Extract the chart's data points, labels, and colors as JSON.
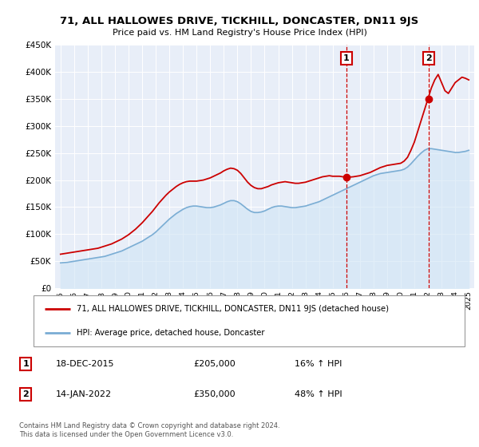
{
  "title": "71, ALL HALLOWES DRIVE, TICKHILL, DONCASTER, DN11 9JS",
  "subtitle": "Price paid vs. HM Land Registry's House Price Index (HPI)",
  "legend_line1": "71, ALL HALLOWES DRIVE, TICKHILL, DONCASTER, DN11 9JS (detached house)",
  "legend_line2": "HPI: Average price, detached house, Doncaster",
  "sale1_date": "18-DEC-2015",
  "sale1_price": "£205,000",
  "sale1_hpi": "16% ↑ HPI",
  "sale2_date": "14-JAN-2022",
  "sale2_price": "£350,000",
  "sale2_hpi": "48% ↑ HPI",
  "footer": "Contains HM Land Registry data © Crown copyright and database right 2024.\nThis data is licensed under the Open Government Licence v3.0.",
  "red_color": "#cc0000",
  "blue_color": "#7aadd4",
  "blue_fill": "#d0e4f5",
  "background_plot": "#e8eef8",
  "ylim": [
    0,
    450000
  ],
  "yticks": [
    0,
    50000,
    100000,
    150000,
    200000,
    250000,
    300000,
    350000,
    400000,
    450000
  ],
  "ytick_labels": [
    "£0",
    "£50K",
    "£100K",
    "£150K",
    "£200K",
    "£250K",
    "£300K",
    "£350K",
    "£400K",
    "£450K"
  ],
  "xtick_years": [
    1995,
    1996,
    1997,
    1998,
    1999,
    2000,
    2001,
    2002,
    2003,
    2004,
    2005,
    2006,
    2007,
    2008,
    2009,
    2010,
    2011,
    2012,
    2013,
    2014,
    2015,
    2016,
    2017,
    2018,
    2019,
    2020,
    2021,
    2022,
    2023,
    2024,
    2025
  ],
  "sale1_year": 2016.0,
  "sale2_year": 2022.04,
  "sale1_price_val": 205000,
  "sale2_price_val": 350000,
  "hpi_x": [
    1995.0,
    1995.25,
    1995.5,
    1995.75,
    1996.0,
    1996.25,
    1996.5,
    1996.75,
    1997.0,
    1997.25,
    1997.5,
    1997.75,
    1998.0,
    1998.25,
    1998.5,
    1998.75,
    1999.0,
    1999.25,
    1999.5,
    1999.75,
    2000.0,
    2000.25,
    2000.5,
    2000.75,
    2001.0,
    2001.25,
    2001.5,
    2001.75,
    2002.0,
    2002.25,
    2002.5,
    2002.75,
    2003.0,
    2003.25,
    2003.5,
    2003.75,
    2004.0,
    2004.25,
    2004.5,
    2004.75,
    2005.0,
    2005.25,
    2005.5,
    2005.75,
    2006.0,
    2006.25,
    2006.5,
    2006.75,
    2007.0,
    2007.25,
    2007.5,
    2007.75,
    2008.0,
    2008.25,
    2008.5,
    2008.75,
    2009.0,
    2009.25,
    2009.5,
    2009.75,
    2010.0,
    2010.25,
    2010.5,
    2010.75,
    2011.0,
    2011.25,
    2011.5,
    2011.75,
    2012.0,
    2012.25,
    2012.5,
    2012.75,
    2013.0,
    2013.25,
    2013.5,
    2013.75,
    2014.0,
    2014.25,
    2014.5,
    2014.75,
    2015.0,
    2015.25,
    2015.5,
    2015.75,
    2016.0,
    2016.25,
    2016.5,
    2016.75,
    2017.0,
    2017.25,
    2017.5,
    2017.75,
    2018.0,
    2018.25,
    2018.5,
    2018.75,
    2019.0,
    2019.25,
    2019.5,
    2019.75,
    2020.0,
    2020.25,
    2020.5,
    2020.75,
    2021.0,
    2021.25,
    2021.5,
    2021.75,
    2022.0,
    2022.25,
    2022.5,
    2022.75,
    2023.0,
    2023.25,
    2023.5,
    2023.75,
    2024.0,
    2024.25,
    2024.5,
    2024.75,
    2025.0
  ],
  "hpi_y": [
    47000,
    47500,
    48000,
    49000,
    50000,
    51000,
    52000,
    53000,
    54000,
    55000,
    56000,
    57000,
    58000,
    59000,
    61000,
    63000,
    65000,
    67000,
    69000,
    72000,
    75000,
    78000,
    81000,
    84000,
    87000,
    91000,
    95000,
    99000,
    104000,
    110000,
    116000,
    122000,
    128000,
    133000,
    138000,
    142000,
    146000,
    149000,
    151000,
    152000,
    152000,
    151000,
    150000,
    149000,
    149000,
    150000,
    152000,
    154000,
    157000,
    160000,
    162000,
    162000,
    160000,
    156000,
    151000,
    146000,
    142000,
    140000,
    140000,
    141000,
    143000,
    146000,
    149000,
    151000,
    152000,
    152000,
    151000,
    150000,
    149000,
    149000,
    150000,
    151000,
    152000,
    154000,
    156000,
    158000,
    160000,
    163000,
    166000,
    169000,
    172000,
    175000,
    178000,
    181000,
    184000,
    187000,
    190000,
    193000,
    196000,
    199000,
    202000,
    205000,
    208000,
    210000,
    212000,
    213000,
    214000,
    215000,
    216000,
    217000,
    218000,
    220000,
    224000,
    230000,
    237000,
    244000,
    250000,
    255000,
    258000,
    258000,
    257000,
    256000,
    255000,
    254000,
    253000,
    252000,
    251000,
    251000,
    252000,
    253000,
    255000
  ],
  "red_x": [
    1995.0,
    1995.25,
    1995.5,
    1995.75,
    1996.0,
    1996.25,
    1996.5,
    1996.75,
    1997.0,
    1997.25,
    1997.5,
    1997.75,
    1998.0,
    1998.25,
    1998.5,
    1998.75,
    1999.0,
    1999.25,
    1999.5,
    1999.75,
    2000.0,
    2000.25,
    2000.5,
    2000.75,
    2001.0,
    2001.25,
    2001.5,
    2001.75,
    2002.0,
    2002.25,
    2002.5,
    2002.75,
    2003.0,
    2003.25,
    2003.5,
    2003.75,
    2004.0,
    2004.25,
    2004.5,
    2004.75,
    2005.0,
    2005.25,
    2005.5,
    2005.75,
    2006.0,
    2006.25,
    2006.5,
    2006.75,
    2007.0,
    2007.25,
    2007.5,
    2007.75,
    2008.0,
    2008.25,
    2008.5,
    2008.75,
    2009.0,
    2009.25,
    2009.5,
    2009.75,
    2010.0,
    2010.25,
    2010.5,
    2010.75,
    2011.0,
    2011.25,
    2011.5,
    2011.75,
    2012.0,
    2012.25,
    2012.5,
    2012.75,
    2013.0,
    2013.25,
    2013.5,
    2013.75,
    2014.0,
    2014.25,
    2014.5,
    2014.75,
    2015.0,
    2015.25,
    2015.5,
    2015.75,
    2016.0,
    2016.25,
    2016.5,
    2016.75,
    2017.0,
    2017.25,
    2017.5,
    2017.75,
    2018.0,
    2018.25,
    2018.5,
    2018.75,
    2019.0,
    2019.25,
    2019.5,
    2019.75,
    2020.0,
    2020.25,
    2020.5,
    2020.75,
    2021.0,
    2021.25,
    2021.5,
    2021.75,
    2022.0,
    2022.25,
    2022.5,
    2022.75,
    2023.0,
    2023.25,
    2023.5,
    2023.75,
    2024.0,
    2024.25,
    2024.5,
    2024.75,
    2025.0
  ],
  "red_y": [
    63000,
    64000,
    65000,
    66000,
    67000,
    68000,
    69000,
    70000,
    71000,
    72000,
    73000,
    74000,
    76000,
    78000,
    80000,
    82000,
    85000,
    88000,
    91000,
    95000,
    99000,
    104000,
    109000,
    115000,
    121000,
    128000,
    135000,
    142000,
    150000,
    158000,
    165000,
    172000,
    178000,
    183000,
    188000,
    192000,
    195000,
    197000,
    198000,
    198000,
    198000,
    199000,
    200000,
    202000,
    204000,
    207000,
    210000,
    213000,
    217000,
    220000,
    222000,
    221000,
    218000,
    212000,
    204000,
    196000,
    190000,
    186000,
    184000,
    184000,
    186000,
    188000,
    191000,
    193000,
    195000,
    196000,
    197000,
    196000,
    195000,
    194000,
    194000,
    195000,
    196000,
    198000,
    200000,
    202000,
    204000,
    206000,
    207000,
    208000,
    207000,
    207000,
    207000,
    206000,
    205000,
    205500,
    206000,
    207000,
    208000,
    210000,
    212000,
    214000,
    217000,
    220000,
    223000,
    225000,
    227000,
    228000,
    229000,
    230000,
    231000,
    235000,
    242000,
    255000,
    270000,
    290000,
    310000,
    330000,
    350000,
    370000,
    385000,
    395000,
    380000,
    365000,
    360000,
    370000,
    380000,
    385000,
    390000,
    388000,
    385000
  ]
}
